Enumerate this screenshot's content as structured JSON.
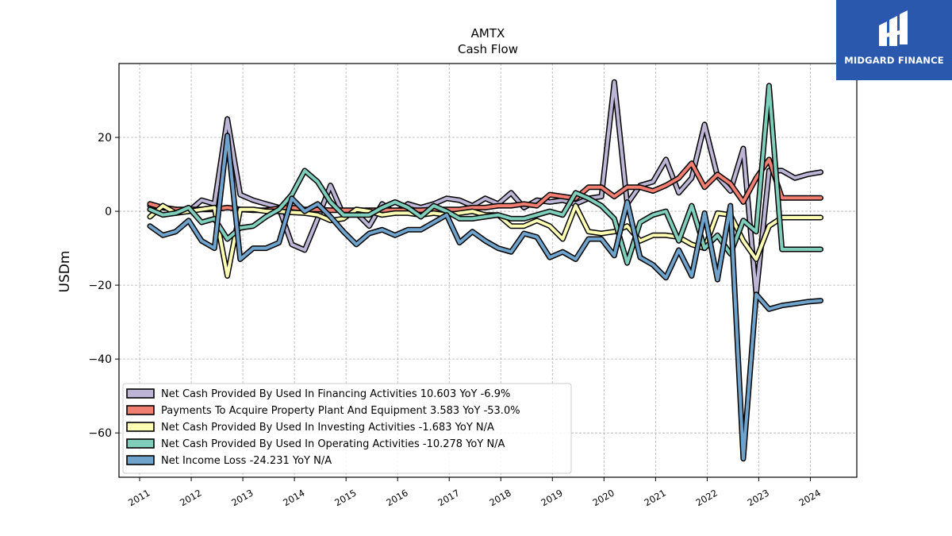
{
  "logo": {
    "text": "MIDGARD FINANCE",
    "bg": "#2a58ad"
  },
  "chart_data": {
    "type": "line",
    "title": "AMTX",
    "subtitle": "Cash Flow",
    "xlabel": "",
    "ylabel": "USDm",
    "xlim": [
      2010.6,
      2024.9
    ],
    "ylim": [
      -72,
      40
    ],
    "yticks": [
      20,
      0,
      -20,
      -40,
      -60
    ],
    "ytick_labels": [
      "20",
      "0",
      "−20",
      "−40",
      "−60"
    ],
    "xticks": [
      2011,
      2012,
      2013,
      2014,
      2015,
      2016,
      2017,
      2018,
      2019,
      2020,
      2021,
      2022,
      2023,
      2024
    ],
    "xtick_labels": [
      "2011",
      "2012",
      "2013",
      "2014",
      "2015",
      "2016",
      "2017",
      "2018",
      "2019",
      "2020",
      "2021",
      "2022",
      "2023",
      "2024"
    ],
    "grid": true,
    "legend_position": "lower-left",
    "x": [
      2011.2,
      2011.45,
      2011.7,
      2011.95,
      2012.2,
      2012.45,
      2012.7,
      2012.95,
      2013.2,
      2013.45,
      2013.7,
      2013.95,
      2014.2,
      2014.45,
      2014.7,
      2014.95,
      2015.2,
      2015.45,
      2015.7,
      2015.95,
      2016.2,
      2016.45,
      2016.7,
      2016.95,
      2017.2,
      2017.45,
      2017.7,
      2017.95,
      2018.2,
      2018.45,
      2018.7,
      2018.95,
      2019.2,
      2019.45,
      2019.7,
      2019.95,
      2020.2,
      2020.45,
      2020.7,
      2020.95,
      2021.2,
      2021.45,
      2021.7,
      2021.95,
      2022.2,
      2022.45,
      2022.7,
      2022.95,
      2023.2,
      2023.45,
      2023.7,
      2023.95,
      2024.2
    ],
    "series": [
      {
        "name": "Net Cash Provided By Used In Financing Activities  10.603 YoY -6.9%",
        "color": "#bcb5d6",
        "values": [
          1.5,
          1,
          0.5,
          0,
          3,
          2,
          25,
          4.5,
          3,
          2,
          1,
          -9,
          -10.5,
          -2,
          7,
          -1,
          -0.5,
          -4,
          2,
          -0.5,
          2,
          1,
          2,
          3.5,
          3,
          1.5,
          3.5,
          2,
          5,
          1,
          3,
          2.5,
          3,
          2,
          3.5,
          4,
          35,
          2,
          7,
          8,
          14,
          5,
          9,
          23.5,
          9.5,
          5.5,
          17,
          -22.5,
          11,
          11,
          9,
          10,
          10.6
        ]
      },
      {
        "name": "Payments To Acquire Property Plant And Equipment  3.583 YoY -53.0%",
        "color": "#f07f72",
        "values": [
          2,
          1,
          0.5,
          0.5,
          0.5,
          0.5,
          1,
          0.5,
          0.3,
          0.3,
          0.8,
          1,
          0.5,
          0.5,
          0.3,
          0.3,
          0.3,
          0.3,
          0.3,
          0.3,
          0.3,
          0.3,
          0.5,
          0.5,
          0.5,
          1,
          1,
          1.5,
          1.5,
          2,
          1.5,
          4.5,
          4,
          3.5,
          6.5,
          6.5,
          4,
          6.5,
          6.5,
          5.5,
          7,
          9,
          13,
          6.5,
          10,
          7.5,
          2.5,
          9,
          14,
          3.6,
          3.6,
          3.6,
          3.6
        ]
      },
      {
        "name": "Net Cash Provided By Used In Investing Activities  -1.683 YoY N/A",
        "color": "#fdfdb3",
        "values": [
          -1.5,
          1.5,
          -0.5,
          0,
          0.5,
          1,
          -17.5,
          0.5,
          0.5,
          0,
          0,
          -0.3,
          -0.5,
          -1,
          -2.5,
          -2,
          0.5,
          0,
          -1,
          -0.5,
          -0.5,
          -1,
          -0.5,
          -1,
          -0.5,
          0,
          -1,
          -1,
          -4,
          -4,
          -2.5,
          -4,
          -7.5,
          1.5,
          -5.5,
          -6,
          -5.5,
          -4,
          -8,
          -6.5,
          -6.5,
          -7,
          -9,
          -10,
          -0.5,
          -1,
          -8,
          -13,
          -4,
          -1.7,
          -1.7,
          -1.7,
          -1.7
        ]
      },
      {
        "name": "Net Cash Provided By Used In Operating Activities  -10.278 YoY N/A",
        "color": "#7fcdbb",
        "values": [
          0.5,
          -1,
          -0.5,
          1,
          -3,
          -2,
          -7.5,
          -4.5,
          -4,
          -1.5,
          0.5,
          4.5,
          11,
          8,
          2.5,
          -1,
          -1,
          -1,
          1,
          2.5,
          1,
          -1.5,
          1.5,
          0,
          -2,
          -2,
          -1.5,
          -1,
          -2,
          -2,
          -1,
          0,
          -1,
          5,
          3.5,
          1.5,
          -2,
          -14,
          -3,
          -1,
          0,
          -8,
          1.5,
          -10,
          -6.5,
          -11.5,
          -2.5,
          -5.5,
          34,
          -10.3,
          -10.3,
          -10.3,
          -10.3
        ]
      },
      {
        "name": "Net Income Loss  -24.231 YoY N/A",
        "color": "#6fa3cb",
        "values": [
          -4,
          -6.5,
          -5.5,
          -2.5,
          -8,
          -10,
          20.5,
          -13,
          -10,
          -10,
          -8.5,
          3.5,
          0,
          2,
          -1.5,
          -5.5,
          -9,
          -6,
          -5,
          -6.5,
          -5,
          -5,
          -3,
          -1,
          -8.5,
          -5.5,
          -8,
          -10,
          -11,
          -6,
          -7,
          -12.5,
          -11,
          -13,
          -7.5,
          -7.5,
          -12,
          2.5,
          -12.5,
          -14.5,
          -18,
          -10.5,
          -17.5,
          -0.5,
          -18.5,
          1.5,
          -67,
          -22.5,
          -26.5,
          -25.5,
          -25,
          -24.5,
          -24.2
        ]
      }
    ]
  }
}
